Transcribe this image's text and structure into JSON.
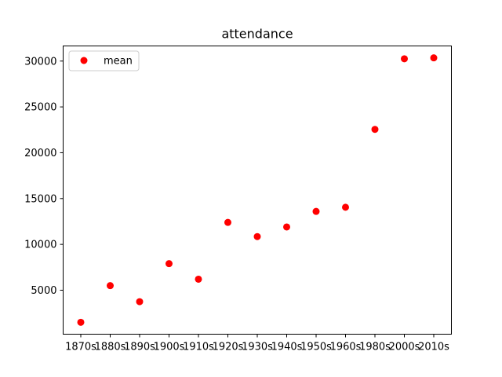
{
  "chart_data": {
    "type": "scatter",
    "title": "attendance",
    "xlabel": "",
    "ylabel": "",
    "categories": [
      "1870s",
      "1880s",
      "1890s",
      "1900s",
      "1910s",
      "1920s",
      "1930s",
      "1940s",
      "1950s",
      "1960s",
      "1980s",
      "2000s",
      "2010s"
    ],
    "series": [
      {
        "name": "mean",
        "color": "#ff0000",
        "marker": "circle",
        "values": [
          1500,
          5500,
          3750,
          7900,
          6200,
          12400,
          10850,
          11900,
          13600,
          14050,
          22550,
          30250,
          30350
        ]
      }
    ],
    "yticks": [
      5000,
      10000,
      15000,
      20000,
      25000,
      30000
    ],
    "ylim": [
      200,
      31650
    ],
    "grid": false,
    "legend": "upper-left"
  }
}
